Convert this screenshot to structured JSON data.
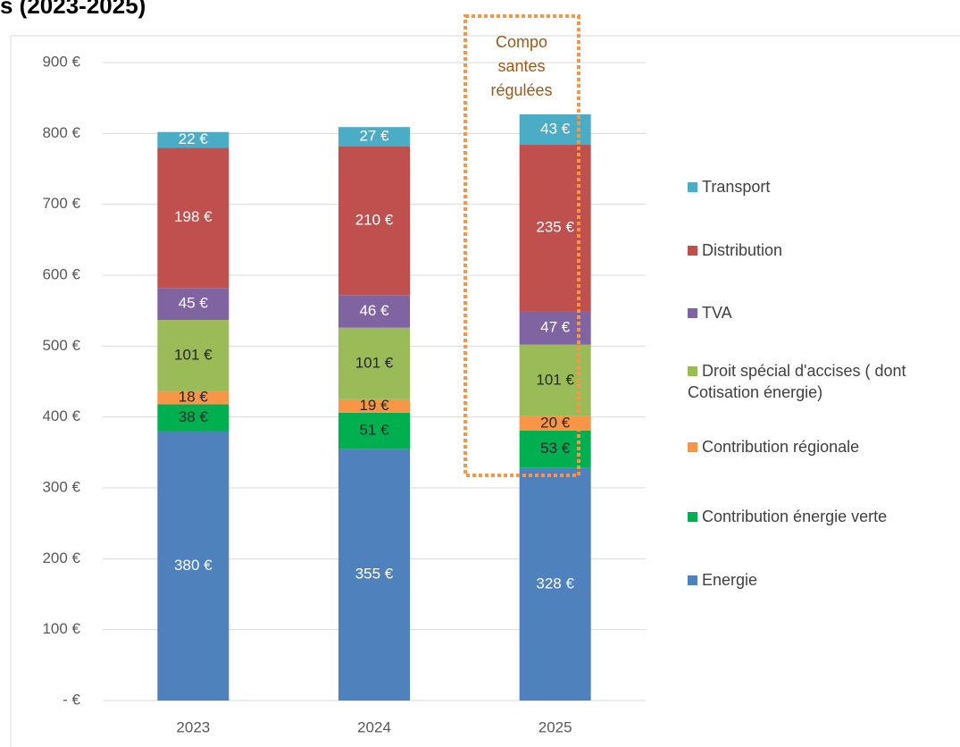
{
  "chart_data": {
    "type": "stacked_bar",
    "title": "s (2023-2025)",
    "categories": [
      "2023",
      "2024",
      "2025"
    ],
    "series": [
      {
        "name": "Energie",
        "color": "#4f81bd",
        "label_color": "#ffffff",
        "values": [
          380,
          355,
          328
        ],
        "value_labels": [
          "380 €",
          "355 €",
          "328 €"
        ]
      },
      {
        "name": "Contribution énergie verte",
        "color": "#00b050",
        "label_color": "#262626",
        "values": [
          38,
          51,
          53
        ],
        "value_labels": [
          "38 €",
          "51 €",
          "53 €"
        ]
      },
      {
        "name": "Contribution régionale",
        "color": "#f79646",
        "label_color": "#262626",
        "values": [
          18,
          19,
          20
        ],
        "value_labels": [
          "18 €",
          "19 €",
          "20 €"
        ]
      },
      {
        "name": "Droit spécial d'accises ( dont Cotisation énergie)",
        "color": "#9bbb59",
        "label_color": "#262626",
        "values": [
          101,
          101,
          101
        ],
        "value_labels": [
          "101 €",
          "101 €",
          "101 €"
        ]
      },
      {
        "name": "TVA",
        "color": "#8064a2",
        "label_color": "#ffffff",
        "values": [
          45,
          46,
          47
        ],
        "value_labels": [
          "45 €",
          "46 €",
          "47 €"
        ]
      },
      {
        "name": "Distribution",
        "color": "#c0504d",
        "label_color": "#ffffff",
        "values": [
          198,
          210,
          235
        ],
        "value_labels": [
          "198 €",
          "210 €",
          "235 €"
        ]
      },
      {
        "name": "Transport",
        "color": "#4bacc6",
        "label_color": "#ffffff",
        "values": [
          22,
          27,
          43
        ],
        "value_labels": [
          "22 €",
          "27 €",
          "43 €"
        ]
      }
    ],
    "ylim": [
      0,
      900
    ],
    "yticks": [
      {
        "value": 0,
        "label": "-  €"
      },
      {
        "value": 100,
        "label": "100 €"
      },
      {
        "value": 200,
        "label": "200 €"
      },
      {
        "value": 300,
        "label": "300 €"
      },
      {
        "value": 400,
        "label": "400 €"
      },
      {
        "value": 500,
        "label": "500 €"
      },
      {
        "value": 600,
        "label": "600 €"
      },
      {
        "value": 700,
        "label": "700 €"
      },
      {
        "value": 800,
        "label": "800 €"
      },
      {
        "value": 900,
        "label": "900 €"
      }
    ],
    "grid": true,
    "legend": "right",
    "annotation": {
      "lines": [
        "Compo",
        "santes",
        "régulées"
      ],
      "color": "#f79646",
      "text_color": "#9c5a14"
    }
  }
}
